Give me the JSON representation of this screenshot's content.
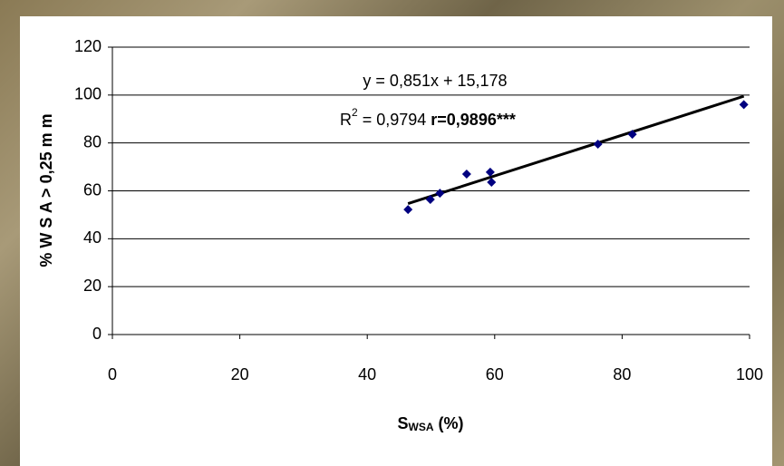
{
  "chart_data": {
    "type": "scatter",
    "x": [
      46.4,
      49.9,
      51.4,
      55.6,
      59.3,
      59.5,
      76.2,
      81.6,
      99.1
    ],
    "values": [
      52.2,
      56.4,
      59,
      67,
      67.8,
      63.6,
      79.5,
      83.6,
      96
    ],
    "color": "#000080",
    "trendline": {
      "slope": 0.851,
      "intercept": 15.178,
      "color": "#000000"
    },
    "annotations": {
      "equation": "y = 0,851x + 15,178",
      "r2_base": "R",
      "r2_sup": "2",
      "r2_value": " = 0,9794 ",
      "r_value": "r=0,9896***"
    },
    "y_label": "% W S A > 0,25 m m",
    "x_label": {
      "base": "S",
      "sub": "WSA",
      "rest": " (%)"
    },
    "xlim": [
      0,
      100
    ],
    "xticks": [
      0,
      20,
      40,
      60,
      80,
      100
    ],
    "ylim": [
      0,
      120
    ],
    "yticks": [
      0,
      20,
      40,
      60,
      80,
      100,
      120
    ],
    "grid": true
  }
}
